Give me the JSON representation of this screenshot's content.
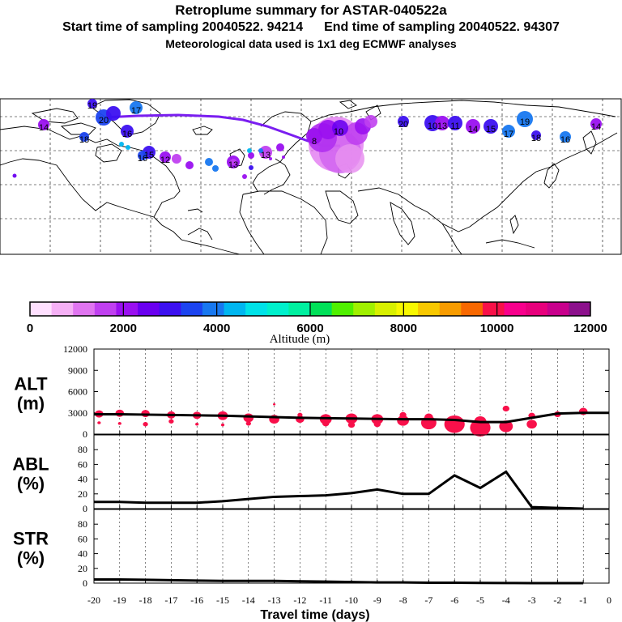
{
  "header": {
    "title": "Retroplume summary for ASTAR-040522a",
    "start_label": "Start time of sampling 20040522. 94214",
    "end_label": "End time of sampling 20040522. 94307",
    "met_label": "Meteorological data used is 1x1 deg ECMWF analyses"
  },
  "colorbar": {
    "colors": [
      "#ffe0ff",
      "#f5b0f5",
      "#e075f0",
      "#c040f0",
      "#9a10f0",
      "#6a00f0",
      "#3c10f0",
      "#1c44f0",
      "#1878f0",
      "#00b6f0",
      "#00e2e8",
      "#00f0cc",
      "#00f0a0",
      "#00e058",
      "#50f000",
      "#a0f000",
      "#d8f000",
      "#f8f800",
      "#f8c800",
      "#f89c00",
      "#f86800",
      "#f81048",
      "#f8008c",
      "#e8007c",
      "#c8008c",
      "#8c108c"
    ],
    "tick_labels": [
      "0",
      "2000",
      "4000",
      "6000",
      "8000",
      "10000",
      "12000"
    ],
    "label": "Altitude (m)"
  },
  "map": {
    "plume_color": "#7a1ef0",
    "trajectory_labels": [
      {
        "text": "20",
        "color": "#1c44f0"
      },
      {
        "text": "17",
        "color": "#1c44f0"
      },
      {
        "text": "19",
        "color": "#1c44f0"
      },
      {
        "text": "18",
        "color": "#1c44f0"
      },
      {
        "text": "16",
        "color": "#1c44f0"
      },
      {
        "text": "15",
        "color": "#1c44f0"
      },
      {
        "text": "14",
        "color": "#9a10f0"
      },
      {
        "text": "13",
        "color": "#9a10f0"
      },
      {
        "text": "12",
        "color": "#c040f0"
      },
      {
        "text": "10",
        "color": "#3c10f0"
      },
      {
        "text": "11",
        "color": "#9a10f0"
      },
      {
        "text": "13",
        "color": "#3c10f0"
      },
      {
        "text": "14",
        "color": "#9a10f0"
      },
      {
        "text": "15",
        "color": "#3c10f0"
      },
      {
        "text": "16",
        "color": "#1878f0"
      },
      {
        "text": "17",
        "color": "#1878f0"
      },
      {
        "text": "19",
        "color": "#1878f0"
      },
      {
        "text": "20",
        "color": "#3c10f0"
      },
      {
        "text": "16",
        "color": "#3c10f0"
      },
      {
        "text": "14",
        "color": "#9a10f0"
      },
      {
        "text": "13",
        "color": "#c040f0"
      },
      {
        "text": "8",
        "color": "#c040f0"
      },
      {
        "text": "10",
        "color": "#9a10f0"
      },
      {
        "text": "18",
        "color": "#3c10f0"
      }
    ]
  },
  "chart_data": [
    {
      "type": "scatter",
      "panel": "ALT",
      "ylabel": "ALT\n(m)",
      "ylabel_line1": "ALT",
      "ylabel_line2": "(m)",
      "ylim": [
        0,
        12000
      ],
      "yticks": [
        "0",
        "3000",
        "6000",
        "9000",
        "12000"
      ],
      "mean_line": {
        "x": [
          -20,
          -19,
          -18,
          -17,
          -16,
          -15,
          -14,
          -13,
          -12,
          -11,
          -10,
          -9,
          -8,
          -7,
          -6,
          -5,
          -4,
          -3,
          -2,
          -1,
          0
        ],
        "y": [
          2800,
          2800,
          2750,
          2700,
          2650,
          2600,
          2500,
          2400,
          2300,
          2250,
          2200,
          2150,
          2100,
          2100,
          2000,
          1700,
          1700,
          2300,
          2900,
          3000,
          3000
        ]
      },
      "clusters": [
        {
          "x": -19.8,
          "y": 2850,
          "size": 5
        },
        {
          "x": -19.8,
          "y": 1600,
          "size": 2
        },
        {
          "x": -19.0,
          "y": 2950,
          "size": 5
        },
        {
          "x": -19.0,
          "y": 1500,
          "size": 2
        },
        {
          "x": -18.0,
          "y": 2900,
          "size": 5
        },
        {
          "x": -18.0,
          "y": 1400,
          "size": 3
        },
        {
          "x": -17.0,
          "y": 2700,
          "size": 5
        },
        {
          "x": -17.0,
          "y": 1800,
          "size": 3
        },
        {
          "x": -16.0,
          "y": 2650,
          "size": 5
        },
        {
          "x": -16.0,
          "y": 1400,
          "size": 2
        },
        {
          "x": -15.0,
          "y": 2600,
          "size": 6
        },
        {
          "x": -15.0,
          "y": 1300,
          "size": 2
        },
        {
          "x": -14.0,
          "y": 2300,
          "size": 6
        },
        {
          "x": -14.0,
          "y": 1500,
          "size": 3
        },
        {
          "x": -13.0,
          "y": 2100,
          "size": 6
        },
        {
          "x": -13.0,
          "y": 4200,
          "size": 1.5
        },
        {
          "x": -12.0,
          "y": 2700,
          "size": 3
        },
        {
          "x": -12.0,
          "y": 2100,
          "size": 5
        },
        {
          "x": -11.0,
          "y": 2100,
          "size": 7
        },
        {
          "x": -11.0,
          "y": 1500,
          "size": 4
        },
        {
          "x": -10.0,
          "y": 2200,
          "size": 7
        },
        {
          "x": -10.0,
          "y": 1300,
          "size": 4
        },
        {
          "x": -9.0,
          "y": 2100,
          "size": 7
        },
        {
          "x": -9.0,
          "y": 1400,
          "size": 4
        },
        {
          "x": -8.0,
          "y": 1900,
          "size": 7
        },
        {
          "x": -8.0,
          "y": 2700,
          "size": 4
        },
        {
          "x": -7.0,
          "y": 1600,
          "size": 9
        },
        {
          "x": -7.0,
          "y": 2400,
          "size": 5
        },
        {
          "x": -6.0,
          "y": 1400,
          "size": 12
        },
        {
          "x": -5.0,
          "y": 900,
          "size": 12
        },
        {
          "x": -5.0,
          "y": 1800,
          "size": 7
        },
        {
          "x": -4.0,
          "y": 1100,
          "size": 8
        },
        {
          "x": -4.0,
          "y": 3600,
          "size": 4
        },
        {
          "x": -3.0,
          "y": 1400,
          "size": 6
        },
        {
          "x": -3.0,
          "y": 2600,
          "size": 4
        },
        {
          "x": -2.0,
          "y": 2800,
          "size": 4
        },
        {
          "x": -1.0,
          "y": 3200,
          "size": 5
        }
      ],
      "color": "#f8104a"
    },
    {
      "type": "line",
      "panel": "ABL",
      "ylabel_line1": "ABL",
      "ylabel_line2": "(%)",
      "ylim": [
        0,
        100
      ],
      "yticks": [
        "0",
        "20",
        "40",
        "60",
        "80"
      ],
      "x": [
        -20,
        -19,
        -18,
        -17,
        -16,
        -15,
        -14,
        -13,
        -12,
        -11,
        -10,
        -9,
        -8,
        -7,
        -6,
        -5,
        -4,
        -3,
        -2,
        -1
      ],
      "values": [
        9,
        9,
        8,
        8,
        8,
        10,
        13,
        16,
        17,
        18,
        21,
        26,
        20,
        20,
        45,
        28,
        50,
        2,
        1,
        0
      ]
    },
    {
      "type": "line",
      "panel": "STR",
      "ylabel_line1": "STR",
      "ylabel_line2": "(%)",
      "ylim": [
        0,
        100
      ],
      "yticks": [
        "0",
        "20",
        "40",
        "60",
        "80"
      ],
      "x": [
        -20,
        -19,
        -18,
        -17,
        -16,
        -15,
        -14,
        -13,
        -12,
        -11,
        -10,
        -9,
        -8,
        -7,
        -6,
        -5,
        -4,
        -3,
        -2,
        -1
      ],
      "values": [
        5,
        5,
        4.5,
        4,
        3.5,
        3,
        3,
        3,
        2.5,
        2,
        1.5,
        1,
        1,
        0.5,
        0.5,
        0.3,
        0.2,
        0,
        0,
        0
      ]
    }
  ],
  "x_axis": {
    "ticks": [
      "-20",
      "-19",
      "-18",
      "-17",
      "-16",
      "-15",
      "-14",
      "-13",
      "-12",
      "-11",
      "-10",
      "-9",
      "-8",
      "-7",
      "-6",
      "-5",
      "-4",
      "-3",
      "-2",
      "-1",
      "0"
    ],
    "xlim": [
      -20,
      0
    ],
    "xlabel": "Travel time (days)"
  }
}
